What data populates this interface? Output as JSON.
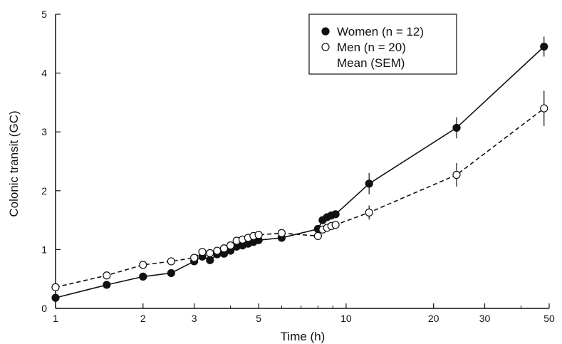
{
  "chart_data": {
    "type": "line",
    "title": "",
    "xlabel": "Time (h)",
    "ylabel": "Colonic transit (GC)",
    "x_scale": "log",
    "xlim": [
      1,
      50
    ],
    "ylim": [
      0,
      5
    ],
    "x_ticks": [
      1,
      2,
      3,
      5,
      10,
      20,
      30,
      50
    ],
    "x_tick_labels": [
      "1",
      "2",
      "3",
      "5",
      "10",
      "20",
      "30",
      "50"
    ],
    "y_ticks": [
      0,
      1,
      2,
      3,
      4,
      5
    ],
    "y_tick_labels": [
      "0",
      "1",
      "2",
      "3",
      "4",
      "5"
    ],
    "grid": false,
    "legend_position": "top-right",
    "legend_note": "Mean (SEM)",
    "series": [
      {
        "name": "Women (n = 12)",
        "marker": "filled-circle",
        "line_style": "solid",
        "color": "#111111",
        "x": [
          1,
          1.5,
          2,
          2.5,
          3,
          3.2,
          3.4,
          3.6,
          3.8,
          4,
          4.2,
          4.4,
          4.6,
          4.8,
          5,
          6,
          8,
          8.3,
          8.6,
          8.9,
          9.2,
          12,
          24,
          48
        ],
        "y": [
          0.18,
          0.4,
          0.54,
          0.6,
          0.8,
          0.88,
          0.82,
          0.92,
          0.93,
          0.98,
          1.05,
          1.07,
          1.1,
          1.13,
          1.16,
          1.2,
          1.35,
          1.5,
          1.55,
          1.58,
          1.6,
          2.12,
          3.07,
          4.45
        ],
        "error": [
          0,
          0,
          0,
          0,
          0,
          0,
          0,
          0,
          0,
          0,
          0,
          0,
          0,
          0,
          0,
          0,
          0,
          0,
          0,
          0,
          0,
          0.18,
          0.18,
          0.17
        ]
      },
      {
        "name": "Men (n = 20)",
        "marker": "open-circle",
        "line_style": "dashed",
        "color": "#111111",
        "x": [
          1,
          1.5,
          2,
          2.5,
          3,
          3.2,
          3.4,
          3.6,
          3.8,
          4,
          4.2,
          4.4,
          4.6,
          4.8,
          5,
          6,
          8,
          8.3,
          8.6,
          8.9,
          9.2,
          12,
          24,
          48
        ],
        "y": [
          0.36,
          0.56,
          0.74,
          0.8,
          0.86,
          0.96,
          0.94,
          0.98,
          1.02,
          1.07,
          1.15,
          1.17,
          1.2,
          1.23,
          1.25,
          1.28,
          1.23,
          1.34,
          1.37,
          1.4,
          1.42,
          1.63,
          2.27,
          3.4
        ],
        "error": [
          0,
          0,
          0,
          0,
          0,
          0,
          0,
          0,
          0,
          0,
          0,
          0,
          0,
          0,
          0,
          0,
          0,
          0,
          0,
          0,
          0,
          0.12,
          0.2,
          0.3
        ]
      }
    ]
  }
}
